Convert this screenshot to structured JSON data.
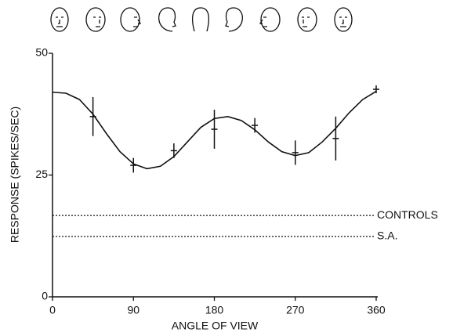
{
  "chart_data": {
    "type": "line",
    "xlabel": "ANGLE OF VIEW",
    "ylabel": "RESPONSE (SPIKES/SEC)",
    "xlim": [
      0,
      360
    ],
    "xticks": [
      0,
      90,
      180,
      270,
      360
    ],
    "ylim": [
      0,
      50
    ],
    "yticks": [
      0,
      25,
      50
    ],
    "color": "#111111",
    "x": [
      45,
      90,
      135,
      180,
      225,
      270,
      315,
      360
    ],
    "values": [
      37,
      27,
      30,
      34.4,
      35.2,
      29.6,
      32.5,
      42.6
    ],
    "errors": [
      4,
      1.5,
      1.5,
      4,
      1.5,
      2.5,
      4.5,
      0.8
    ],
    "fit": {
      "x": [
        0,
        15,
        30,
        45,
        60,
        75,
        90,
        105,
        120,
        135,
        150,
        165,
        180,
        195,
        210,
        225,
        240,
        255,
        270,
        285,
        300,
        315,
        330,
        345,
        360
      ],
      "values": [
        42,
        41.8,
        40.5,
        37.5,
        33.5,
        29.8,
        27.3,
        26.3,
        26.8,
        28.8,
        31.8,
        34.8,
        36.6,
        37,
        36.2,
        34.3,
        31.8,
        29.8,
        29,
        29.6,
        31.8,
        34.6,
        37.8,
        40.5,
        42.2
      ]
    },
    "reference_lines": [
      {
        "label": "CONTROLS",
        "value": 16.7
      },
      {
        "label": "S.A.",
        "value": 12.4
      }
    ]
  }
}
